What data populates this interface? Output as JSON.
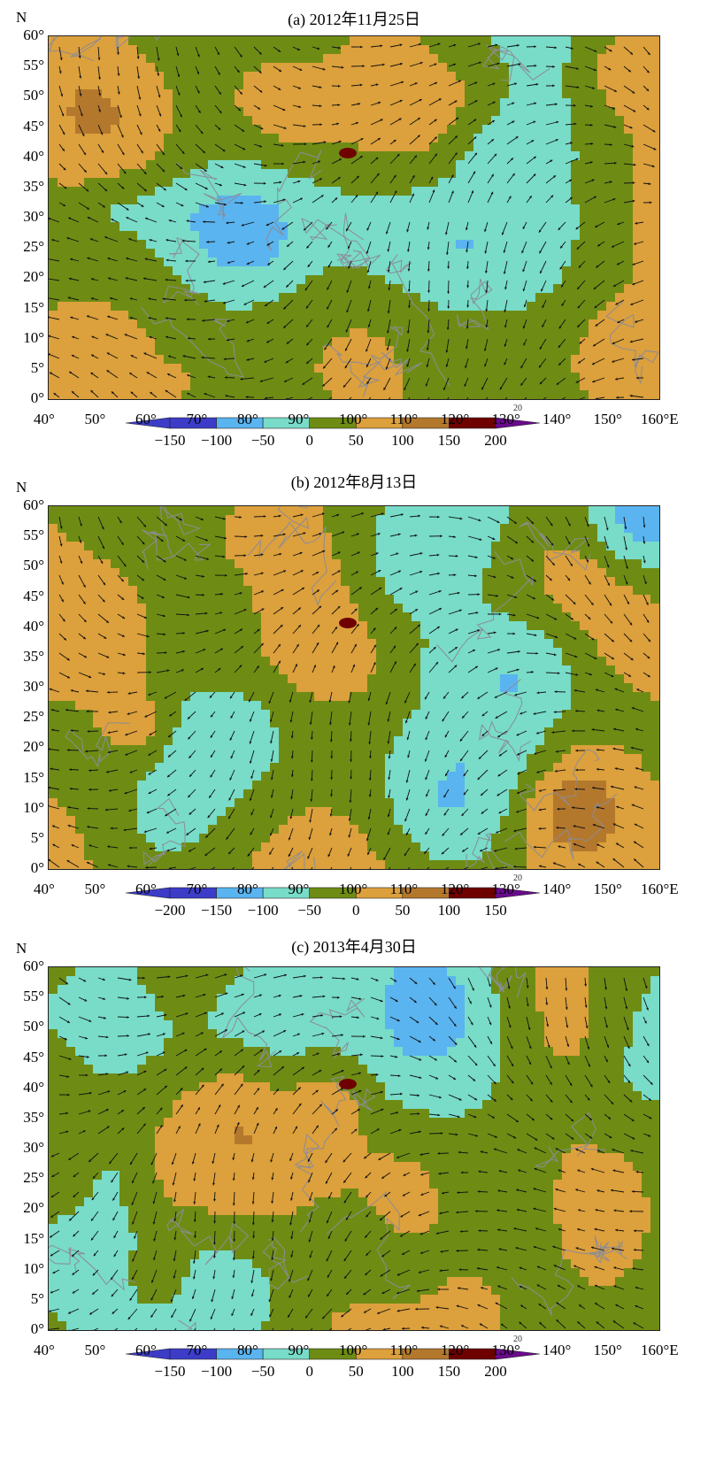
{
  "panels": [
    {
      "title": "(a) 2012年11月25日",
      "lat_axis_label": "N",
      "lon_axis_label": "E",
      "lat_ticks": [
        "60°",
        "55°",
        "50°",
        "45°",
        "40°",
        "35°",
        "30°",
        "25°",
        "20°",
        "15°",
        "10°",
        "5°",
        "0°"
      ],
      "lon_ticks": [
        "40°",
        "50°",
        "60°",
        "70°",
        "80°",
        "90°",
        "100°",
        "110°",
        "120°",
        "130°",
        "140°",
        "150°",
        "160°E"
      ],
      "colorbar_labels": [
        "-150",
        "-100",
        "-50",
        "0",
        "50",
        "100",
        "150",
        "200"
      ],
      "reference_vector": "20"
    },
    {
      "title": "(b) 2012年8月13日",
      "lat_axis_label": "N",
      "lon_axis_label": "E",
      "lat_ticks": [
        "60°",
        "55°",
        "50°",
        "45°",
        "40°",
        "35°",
        "30°",
        "25°",
        "20°",
        "15°",
        "10°",
        "5°",
        "0°"
      ],
      "lon_ticks": [
        "40°",
        "50°",
        "60°",
        "70°",
        "80°",
        "90°",
        "100°",
        "110°",
        "120°",
        "130°",
        "140°",
        "150°",
        "160°E"
      ],
      "colorbar_labels": [
        "-200",
        "-150",
        "-100",
        "-50",
        "0",
        "50",
        "100",
        "150"
      ],
      "reference_vector": "20"
    },
    {
      "title": "(c) 2013年4月30日",
      "lat_axis_label": "N",
      "lon_axis_label": "E",
      "lat_ticks": [
        "60°",
        "55°",
        "50°",
        "45°",
        "40°",
        "35°",
        "30°",
        "25°",
        "20°",
        "15°",
        "10°",
        "5°",
        "0°"
      ],
      "lon_ticks": [
        "40°",
        "50°",
        "60°",
        "70°",
        "80°",
        "90°",
        "100°",
        "110°",
        "120°",
        "130°",
        "140°",
        "150°",
        "160°E"
      ],
      "colorbar_labels": [
        "-150",
        "-100",
        "-50",
        "0",
        "50",
        "100",
        "150",
        "200"
      ],
      "reference_vector": "20"
    }
  ],
  "colors": {
    "level_1": "#3c3cc8",
    "level_2": "#5ab4f0",
    "level_3": "#78dcc8",
    "level_4": "#6e8c14",
    "level_5": "#dca03c",
    "level_6": "#b4782d",
    "level_7": "#6e0000",
    "tip_high": "#6a0a8c",
    "coastline": "#8c8c96",
    "vector": "#111111"
  }
}
